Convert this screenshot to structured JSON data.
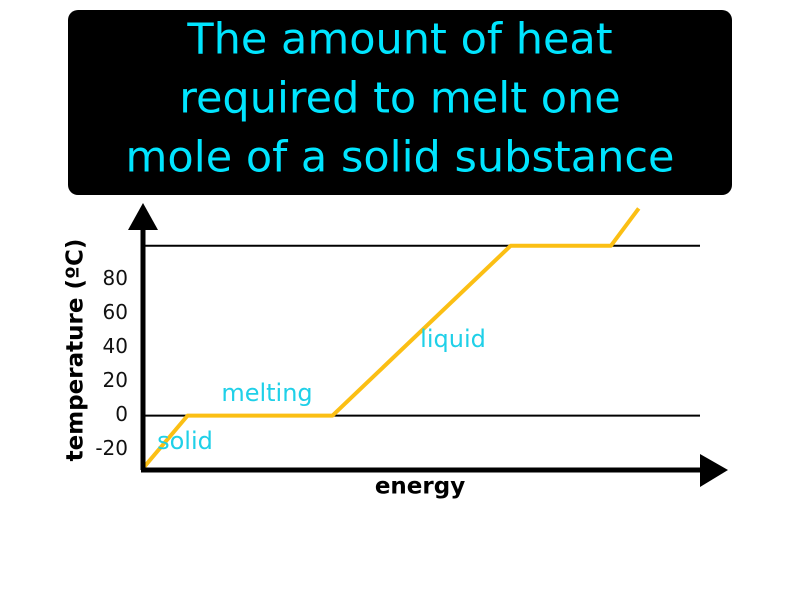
{
  "chart_data": {
    "type": "line",
    "title": [
      "The amount of heat",
      "required to melt one",
      "mole of a solid substance"
    ],
    "x_label": "energy",
    "y_label": "temperature (ºC)",
    "x": [
      0,
      8,
      34,
      66,
      84,
      89
    ],
    "series": [
      {
        "color": "#fbbf14",
        "values": [
          -31,
          0,
          0,
          100,
          100,
          122
        ]
      }
    ],
    "xlim": [
      0,
      100
    ],
    "ylim": [
      -32,
      124
    ],
    "yticks": [
      -20,
      0,
      20,
      40,
      60,
      80
    ],
    "reference_lines": [
      0,
      100
    ],
    "annotations": [
      "solid",
      "melting",
      "liquid"
    ],
    "annotation_color": "#1fd0e8"
  }
}
